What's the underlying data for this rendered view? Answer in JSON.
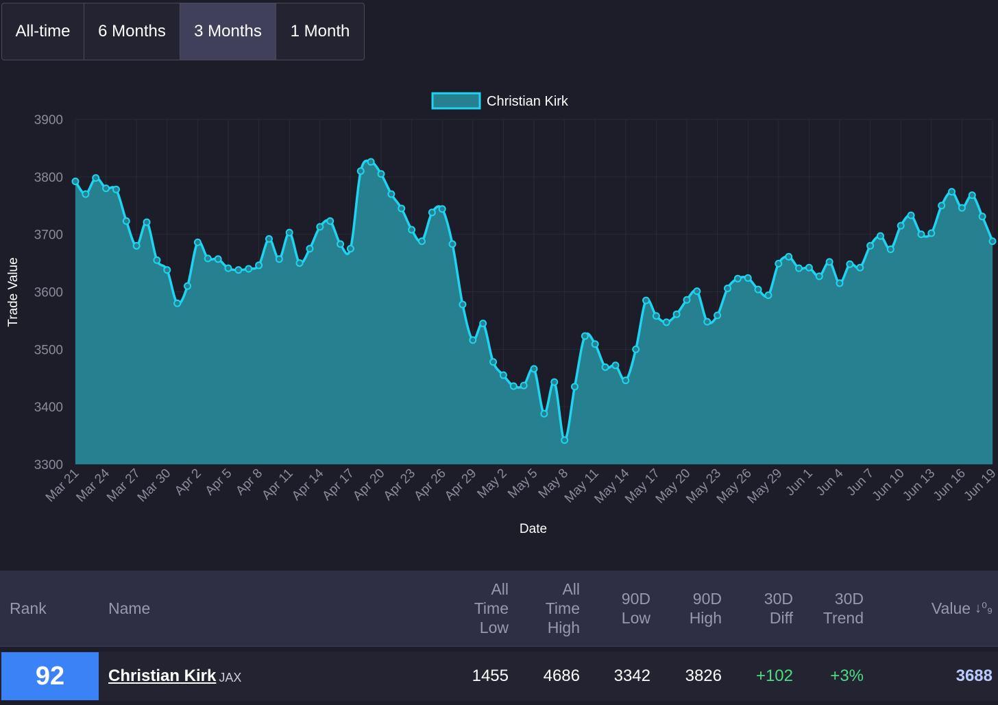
{
  "range_tabs": [
    {
      "label": "All-time"
    },
    {
      "label": "6 Months"
    },
    {
      "label": "3 Months",
      "active": true
    },
    {
      "label": "1 Month"
    }
  ],
  "chart_data": {
    "type": "area",
    "ylabel": "Trade Value",
    "xlabel": "Date",
    "ylim": [
      3300,
      3900
    ],
    "yticks": [
      3900,
      3800,
      3700,
      3600,
      3500,
      3400,
      3300
    ],
    "xticks": [
      "Mar 21",
      "Mar 24",
      "Mar 27",
      "Mar 30",
      "Apr 2",
      "Apr 5",
      "Apr 8",
      "Apr 11",
      "Apr 14",
      "Apr 17",
      "Apr 20",
      "Apr 23",
      "Apr 26",
      "Apr 29",
      "May 2",
      "May 5",
      "May 8",
      "May 11",
      "May 14",
      "May 17",
      "May 20",
      "May 23",
      "May 26",
      "May 29",
      "Jun 1",
      "Jun 4",
      "Jun 7",
      "Jun 10",
      "Jun 13",
      "Jun 16",
      "Jun 19"
    ],
    "grid": true,
    "legend_position": "top-center",
    "colors": {
      "line": "#1fd4f0",
      "fill": "#26808f",
      "background": "#1d1d29",
      "grid": "#2a2a36"
    },
    "series": [
      {
        "name": "Christian Kirk",
        "values": [
          3792,
          3770,
          3798,
          3780,
          3778,
          3723,
          3680,
          3721,
          3655,
          3638,
          3580,
          3610,
          3686,
          3658,
          3657,
          3641,
          3638,
          3640,
          3646,
          3692,
          3657,
          3703,
          3650,
          3675,
          3713,
          3723,
          3683,
          3675,
          3810,
          3826,
          3805,
          3770,
          3745,
          3708,
          3688,
          3738,
          3744,
          3683,
          3578,
          3516,
          3545,
          3478,
          3455,
          3436,
          3437,
          3466,
          3388,
          3443,
          3342,
          3435,
          3523,
          3509,
          3469,
          3472,
          3446,
          3500,
          3585,
          3558,
          3547,
          3561,
          3586,
          3601,
          3548,
          3559,
          3606,
          3623,
          3624,
          3604,
          3594,
          3649,
          3661,
          3641,
          3642,
          3627,
          3652,
          3615,
          3648,
          3642,
          3680,
          3697,
          3674,
          3715,
          3733,
          3700,
          3702,
          3750,
          3774,
          3746,
          3768,
          3731,
          3688
        ]
      }
    ]
  },
  "table": {
    "headers": {
      "rank": "Rank",
      "name": "Name",
      "all_time_low": "All\nTime\nLow",
      "all_time_high": "All\nTime\nHigh",
      "low_90d": "90D\nLow",
      "high_90d": "90D\nHigh",
      "diff_30d": "30D\nDiff",
      "trend_30d": "30D\nTrend",
      "value": "Value"
    },
    "sort_icon": "sort-descending-icon",
    "sort_glyph": "↓⁰₉",
    "row": {
      "rank": "92",
      "name": "Christian Kirk",
      "team": "JAX",
      "all_time_low": "1455",
      "all_time_high": "4686",
      "low_90d": "3342",
      "high_90d": "3826",
      "diff_30d": "+102",
      "trend_30d": "+3%",
      "value": "3688"
    }
  }
}
